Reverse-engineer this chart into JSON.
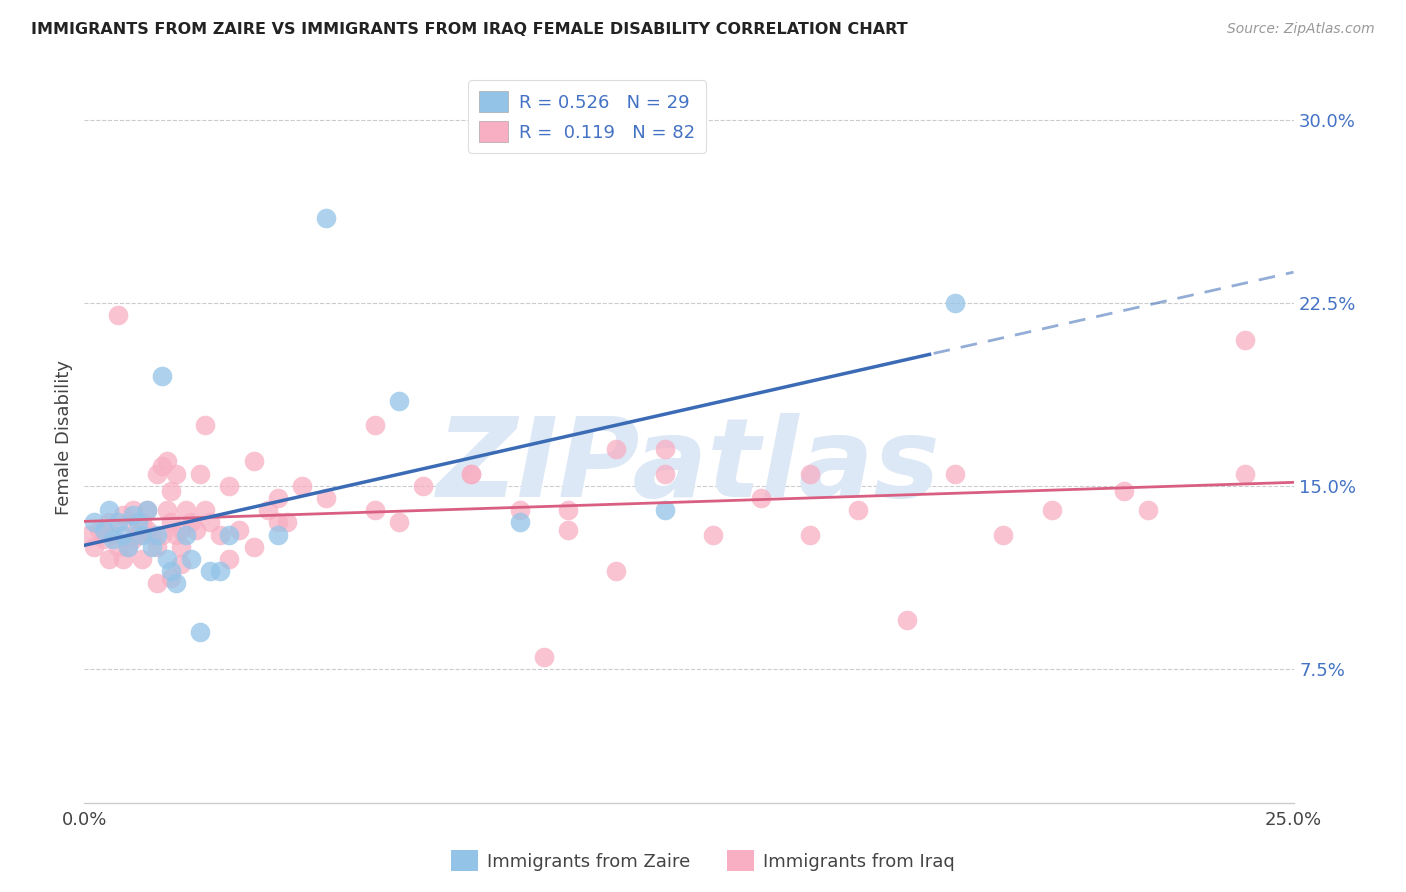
{
  "title": "IMMIGRANTS FROM ZAIRE VS IMMIGRANTS FROM IRAQ FEMALE DISABILITY CORRELATION CHART",
  "source": "Source: ZipAtlas.com",
  "ylabel": "Female Disability",
  "xlim": [
    0.0,
    0.25
  ],
  "ylim": [
    0.02,
    0.32
  ],
  "yticks": [
    0.075,
    0.15,
    0.225,
    0.3
  ],
  "ytick_labels": [
    "7.5%",
    "15.0%",
    "22.5%",
    "30.0%"
  ],
  "xticks": [
    0.0,
    0.05,
    0.1,
    0.15,
    0.2,
    0.25
  ],
  "xtick_labels": [
    "0.0%",
    "",
    "",
    "",
    "",
    "25.0%"
  ],
  "zaire_color": "#93c4e8",
  "iraq_color": "#f8afc4",
  "zaire_line_color": "#3b6bb5",
  "iraq_line_color": "#d95f82",
  "watermark_text": "ZIPatlas",
  "watermark_color": "#dce8f5",
  "background_color": "#ffffff",
  "grid_color": "#cccccc",
  "legend_label_zaire": "R = 0.526   N = 29",
  "legend_label_iraq": "R =  0.119   N = 82",
  "bottom_legend_zaire": "Immigrants from Zaire",
  "bottom_legend_iraq": "Immigrants from Iraq",
  "zaire_x": [
    0.002,
    0.004,
    0.005,
    0.006,
    0.007,
    0.008,
    0.009,
    0.01,
    0.011,
    0.012,
    0.013,
    0.014,
    0.015,
    0.016,
    0.017,
    0.018,
    0.019,
    0.021,
    0.022,
    0.024,
    0.026,
    0.028,
    0.03,
    0.04,
    0.05,
    0.065,
    0.09,
    0.12,
    0.18
  ],
  "zaire_y": [
    0.135,
    0.132,
    0.14,
    0.128,
    0.135,
    0.13,
    0.125,
    0.138,
    0.135,
    0.13,
    0.14,
    0.125,
    0.13,
    0.195,
    0.12,
    0.115,
    0.11,
    0.13,
    0.12,
    0.09,
    0.115,
    0.115,
    0.13,
    0.13,
    0.26,
    0.185,
    0.135,
    0.14,
    0.225
  ],
  "iraq_x": [
    0.001,
    0.002,
    0.003,
    0.004,
    0.005,
    0.005,
    0.006,
    0.007,
    0.007,
    0.008,
    0.008,
    0.009,
    0.009,
    0.01,
    0.01,
    0.011,
    0.012,
    0.012,
    0.013,
    0.013,
    0.014,
    0.015,
    0.015,
    0.016,
    0.016,
    0.017,
    0.017,
    0.018,
    0.018,
    0.019,
    0.019,
    0.02,
    0.02,
    0.021,
    0.022,
    0.023,
    0.024,
    0.025,
    0.026,
    0.028,
    0.03,
    0.032,
    0.035,
    0.038,
    0.04,
    0.042,
    0.045,
    0.05,
    0.06,
    0.065,
    0.07,
    0.08,
    0.09,
    0.1,
    0.11,
    0.12,
    0.13,
    0.14,
    0.15,
    0.16,
    0.18,
    0.2,
    0.22,
    0.24,
    0.015,
    0.018,
    0.02,
    0.025,
    0.03,
    0.035,
    0.04,
    0.06,
    0.08,
    0.1,
    0.12,
    0.15,
    0.17,
    0.19,
    0.215,
    0.24,
    0.11,
    0.095
  ],
  "iraq_y": [
    0.13,
    0.125,
    0.132,
    0.128,
    0.135,
    0.12,
    0.13,
    0.125,
    0.22,
    0.12,
    0.138,
    0.125,
    0.135,
    0.128,
    0.14,
    0.13,
    0.12,
    0.135,
    0.132,
    0.14,
    0.13,
    0.125,
    0.155,
    0.13,
    0.158,
    0.14,
    0.16,
    0.135,
    0.148,
    0.13,
    0.155,
    0.125,
    0.132,
    0.14,
    0.135,
    0.132,
    0.155,
    0.14,
    0.135,
    0.13,
    0.15,
    0.132,
    0.16,
    0.14,
    0.145,
    0.135,
    0.15,
    0.145,
    0.14,
    0.135,
    0.15,
    0.155,
    0.14,
    0.14,
    0.165,
    0.155,
    0.13,
    0.145,
    0.155,
    0.14,
    0.155,
    0.14,
    0.14,
    0.155,
    0.11,
    0.112,
    0.118,
    0.175,
    0.12,
    0.125,
    0.135,
    0.175,
    0.155,
    0.132,
    0.165,
    0.13,
    0.095,
    0.13,
    0.148,
    0.21,
    0.115,
    0.08
  ]
}
